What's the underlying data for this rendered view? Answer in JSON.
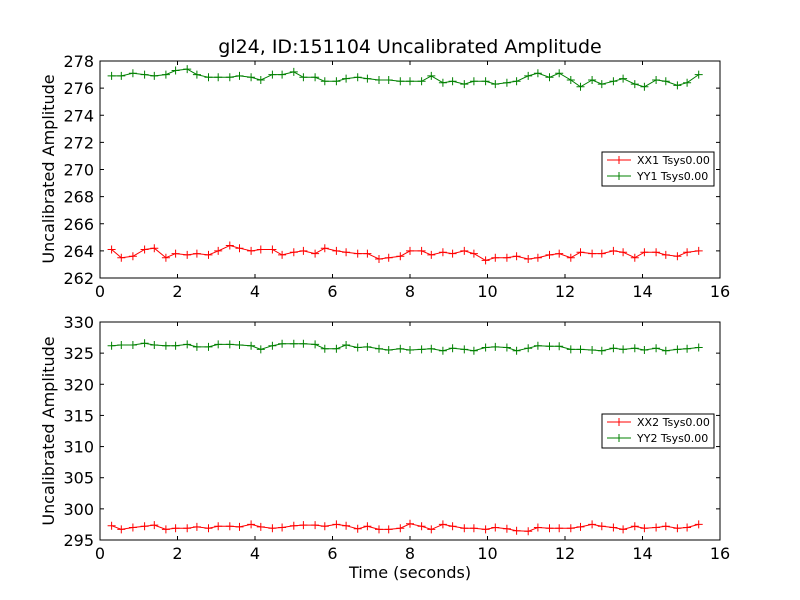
{
  "colors": {
    "xx": "#ff0000",
    "yy": "#008000",
    "axis": "#000000",
    "background": "#ffffff"
  },
  "chart_data": [
    {
      "type": "line",
      "title": "gl24, ID:151104 Uncalibrated Amplitude",
      "xlabel": "",
      "ylabel": "Uncalibrated Amplitude",
      "xlim": [
        0,
        16
      ],
      "ylim": [
        262,
        278
      ],
      "xticks": [
        0,
        2,
        4,
        6,
        8,
        10,
        12,
        14,
        16
      ],
      "yticks": [
        262,
        264,
        266,
        268,
        270,
        272,
        274,
        276,
        278
      ],
      "legend_position": "center-right",
      "x": [
        0.3,
        0.55,
        0.85,
        1.15,
        1.4,
        1.7,
        1.95,
        2.25,
        2.5,
        2.8,
        3.05,
        3.35,
        3.6,
        3.9,
        4.15,
        4.45,
        4.7,
        5.0,
        5.25,
        5.55,
        5.8,
        6.1,
        6.35,
        6.65,
        6.9,
        7.2,
        7.45,
        7.75,
        8.0,
        8.3,
        8.55,
        8.85,
        9.1,
        9.4,
        9.65,
        9.95,
        10.2,
        10.5,
        10.75,
        11.05,
        11.3,
        11.6,
        11.85,
        12.15,
        12.4,
        12.7,
        12.95,
        13.25,
        13.5,
        13.8,
        14.05,
        14.35,
        14.6,
        14.9,
        15.15,
        15.45
      ],
      "series": [
        {
          "name": "XX1 Tsys0.00",
          "color": "#ff0000",
          "values": [
            264.1,
            263.5,
            263.6,
            264.1,
            264.2,
            263.5,
            263.8,
            263.7,
            263.8,
            263.7,
            264.0,
            264.4,
            264.2,
            264.0,
            264.1,
            264.1,
            263.7,
            263.9,
            264.0,
            263.8,
            264.2,
            264.0,
            263.9,
            263.8,
            263.8,
            263.4,
            263.5,
            263.6,
            264.0,
            264.0,
            263.7,
            263.9,
            263.8,
            264.0,
            263.8,
            263.3,
            263.5,
            263.5,
            263.6,
            263.4,
            263.5,
            263.7,
            263.8,
            263.5,
            263.9,
            263.8,
            263.8,
            264.0,
            263.9,
            263.5,
            263.9,
            263.9,
            263.7,
            263.6,
            263.9,
            264.0
          ]
        },
        {
          "name": "YY1 Tsys0.00",
          "color": "#008000",
          "values": [
            276.9,
            276.9,
            277.1,
            277.0,
            276.9,
            277.0,
            277.3,
            277.4,
            277.0,
            276.8,
            276.8,
            276.8,
            276.9,
            276.8,
            276.6,
            277.0,
            277.0,
            277.2,
            276.8,
            276.8,
            276.5,
            276.5,
            276.7,
            276.8,
            276.7,
            276.6,
            276.6,
            276.5,
            276.5,
            276.5,
            276.9,
            276.4,
            276.5,
            276.3,
            276.5,
            276.5,
            276.3,
            276.4,
            276.5,
            276.9,
            277.1,
            276.8,
            277.1,
            276.6,
            276.1,
            276.6,
            276.3,
            276.5,
            276.7,
            276.3,
            276.1,
            276.6,
            276.5,
            276.2,
            276.4,
            277.0
          ]
        }
      ]
    },
    {
      "type": "line",
      "title": "",
      "xlabel": "Time (seconds)",
      "ylabel": "Uncalibrated Amplitude",
      "xlim": [
        0,
        16
      ],
      "ylim": [
        295,
        330
      ],
      "xticks": [
        0,
        2,
        4,
        6,
        8,
        10,
        12,
        14,
        16
      ],
      "yticks": [
        295,
        300,
        305,
        310,
        315,
        320,
        325,
        330
      ],
      "legend_position": "center-right",
      "x": [
        0.3,
        0.55,
        0.85,
        1.15,
        1.4,
        1.7,
        1.95,
        2.25,
        2.5,
        2.8,
        3.05,
        3.35,
        3.6,
        3.9,
        4.15,
        4.45,
        4.7,
        5.0,
        5.25,
        5.55,
        5.8,
        6.1,
        6.35,
        6.65,
        6.9,
        7.2,
        7.45,
        7.75,
        8.0,
        8.3,
        8.55,
        8.85,
        9.1,
        9.4,
        9.65,
        9.95,
        10.2,
        10.5,
        10.75,
        11.05,
        11.3,
        11.6,
        11.85,
        12.15,
        12.4,
        12.7,
        12.95,
        13.25,
        13.5,
        13.8,
        14.05,
        14.35,
        14.6,
        14.9,
        15.15,
        15.45
      ],
      "series": [
        {
          "name": "XX2 Tsys0.00",
          "color": "#ff0000",
          "values": [
            297.3,
            296.7,
            297.0,
            297.2,
            297.4,
            296.7,
            296.9,
            296.9,
            297.1,
            296.9,
            297.2,
            297.2,
            297.1,
            297.5,
            297.1,
            296.9,
            297.0,
            297.3,
            297.4,
            297.4,
            297.2,
            297.5,
            297.3,
            296.8,
            297.2,
            296.7,
            296.7,
            296.9,
            297.6,
            297.2,
            296.7,
            297.5,
            297.2,
            296.9,
            296.9,
            296.7,
            297.0,
            296.8,
            296.5,
            296.4,
            297.0,
            296.9,
            296.9,
            296.9,
            297.1,
            297.5,
            297.2,
            297.0,
            296.7,
            297.2,
            296.9,
            297.0,
            297.2,
            296.9,
            297.0,
            297.5
          ]
        },
        {
          "name": "YY2 Tsys0.00",
          "color": "#008000",
          "values": [
            326.2,
            326.3,
            326.3,
            326.6,
            326.3,
            326.2,
            326.2,
            326.4,
            326.0,
            326.0,
            326.4,
            326.4,
            326.3,
            326.2,
            325.6,
            326.2,
            326.5,
            326.5,
            326.5,
            326.4,
            325.7,
            325.7,
            326.3,
            325.9,
            326.0,
            325.7,
            325.5,
            325.7,
            325.5,
            325.6,
            325.7,
            325.4,
            325.8,
            325.6,
            325.4,
            325.9,
            326.0,
            325.9,
            325.4,
            325.8,
            326.2,
            326.1,
            326.1,
            325.6,
            325.6,
            325.5,
            325.4,
            325.8,
            325.6,
            325.8,
            325.5,
            325.8,
            325.4,
            325.6,
            325.7,
            325.9
          ]
        }
      ]
    }
  ]
}
